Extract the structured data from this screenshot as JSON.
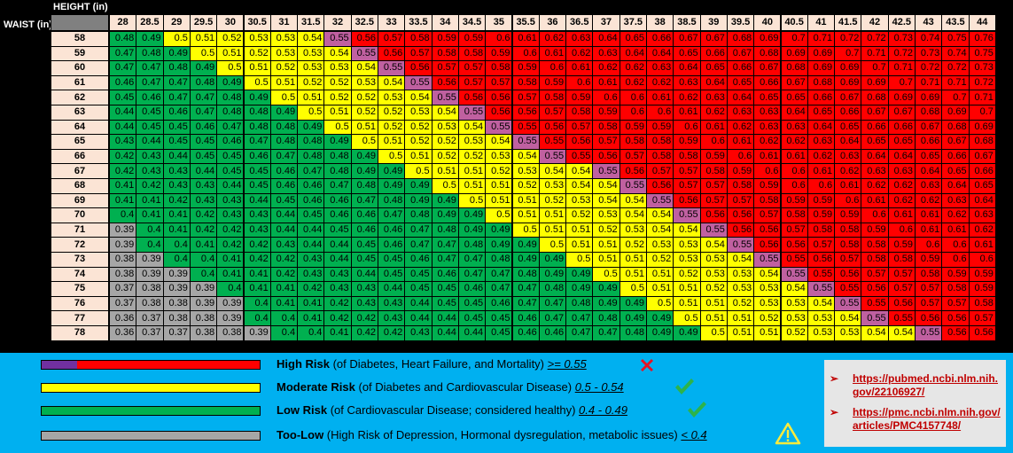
{
  "labels": {
    "height": "HEIGHT (in)",
    "waist": "WAIST (in)"
  },
  "heights": [
    "28",
    "28.5",
    "29",
    "29.5",
    "30",
    "30.5",
    "31",
    "31.5",
    "32",
    "32.5",
    "33",
    "33.5",
    "34",
    "34.5",
    "35",
    "35.5",
    "36",
    "36.5",
    "37",
    "37.5",
    "38",
    "38.5",
    "39",
    "39.5",
    "40",
    "40.5",
    "41",
    "41.5",
    "42",
    "42.5",
    "43",
    "43.5",
    "44"
  ],
  "rows": [
    {
      "waist": "58",
      "values": [
        "0.48",
        "0.49",
        "0.5",
        "0.51",
        "0.52",
        "0.53",
        "0.53",
        "0.54",
        "0.55",
        "0.56",
        "0.57",
        "0.58",
        "0.59",
        "0.59",
        "0.6",
        "0.61",
        "0.62",
        "0.63",
        "0.64",
        "0.65",
        "0.66",
        "0.67",
        "0.67",
        "0.68",
        "0.69",
        "0.7",
        "0.71",
        "0.72",
        "0.72",
        "0.73",
        "0.74",
        "0.75",
        "0.76"
      ]
    },
    {
      "waist": "59",
      "values": [
        "0.47",
        "0.48",
        "0.49",
        "0.5",
        "0.51",
        "0.52",
        "0.53",
        "0.53",
        "0.54",
        "0.55",
        "0.56",
        "0.57",
        "0.58",
        "0.58",
        "0.59",
        "0.6",
        "0.61",
        "0.62",
        "0.63",
        "0.64",
        "0.64",
        "0.65",
        "0.66",
        "0.67",
        "0.68",
        "0.69",
        "0.69",
        "0.7",
        "0.71",
        "0.72",
        "0.73",
        "0.74",
        "0.75"
      ]
    },
    {
      "waist": "60",
      "values": [
        "0.47",
        "0.47",
        "0.48",
        "0.49",
        "0.5",
        "0.51",
        "0.52",
        "0.53",
        "0.53",
        "0.54",
        "0.55",
        "0.56",
        "0.57",
        "0.57",
        "0.58",
        "0.59",
        "0.6",
        "0.61",
        "0.62",
        "0.62",
        "0.63",
        "0.64",
        "0.65",
        "0.66",
        "0.67",
        "0.68",
        "0.69",
        "0.69",
        "0.7",
        "0.71",
        "0.72",
        "0.72",
        "0.73"
      ]
    },
    {
      "waist": "61",
      "values": [
        "0.46",
        "0.47",
        "0.47",
        "0.48",
        "0.49",
        "0.5",
        "0.51",
        "0.52",
        "0.52",
        "0.53",
        "0.54",
        "0.55",
        "0.56",
        "0.57",
        "0.57",
        "0.58",
        "0.59",
        "0.6",
        "0.61",
        "0.62",
        "0.62",
        "0.63",
        "0.64",
        "0.65",
        "0.66",
        "0.67",
        "0.68",
        "0.69",
        "0.69",
        "0.7",
        "0.71",
        "0.71",
        "0.72"
      ]
    },
    {
      "waist": "62",
      "values": [
        "0.45",
        "0.46",
        "0.47",
        "0.47",
        "0.48",
        "0.49",
        "0.5",
        "0.51",
        "0.52",
        "0.52",
        "0.53",
        "0.54",
        "0.55",
        "0.56",
        "0.56",
        "0.57",
        "0.58",
        "0.59",
        "0.6",
        "0.6",
        "0.61",
        "0.62",
        "0.63",
        "0.64",
        "0.65",
        "0.65",
        "0.66",
        "0.67",
        "0.68",
        "0.69",
        "0.69",
        "0.7",
        "0.71"
      ]
    },
    {
      "waist": "63",
      "values": [
        "0.44",
        "0.45",
        "0.46",
        "0.47",
        "0.48",
        "0.48",
        "0.49",
        "0.5",
        "0.51",
        "0.52",
        "0.52",
        "0.53",
        "0.54",
        "0.55",
        "0.56",
        "0.56",
        "0.57",
        "0.58",
        "0.59",
        "0.6",
        "0.6",
        "0.61",
        "0.62",
        "0.63",
        "0.63",
        "0.64",
        "0.65",
        "0.66",
        "0.67",
        "0.67",
        "0.68",
        "0.69",
        "0.7"
      ]
    },
    {
      "waist": "64",
      "values": [
        "0.44",
        "0.45",
        "0.45",
        "0.46",
        "0.47",
        "0.48",
        "0.48",
        "0.49",
        "0.5",
        "0.51",
        "0.52",
        "0.52",
        "0.53",
        "0.54",
        "0.55",
        "0.55",
        "0.56",
        "0.57",
        "0.58",
        "0.59",
        "0.59",
        "0.6",
        "0.61",
        "0.62",
        "0.63",
        "0.63",
        "0.64",
        "0.65",
        "0.66",
        "0.66",
        "0.67",
        "0.68",
        "0.69"
      ]
    },
    {
      "waist": "65",
      "values": [
        "0.43",
        "0.44",
        "0.45",
        "0.45",
        "0.46",
        "0.47",
        "0.48",
        "0.48",
        "0.49",
        "0.5",
        "0.51",
        "0.52",
        "0.52",
        "0.53",
        "0.54",
        "0.55",
        "0.55",
        "0.56",
        "0.57",
        "0.58",
        "0.58",
        "0.59",
        "0.6",
        "0.61",
        "0.62",
        "0.62",
        "0.63",
        "0.64",
        "0.65",
        "0.65",
        "0.66",
        "0.67",
        "0.68"
      ]
    },
    {
      "waist": "66",
      "values": [
        "0.42",
        "0.43",
        "0.44",
        "0.45",
        "0.45",
        "0.46",
        "0.47",
        "0.48",
        "0.48",
        "0.49",
        "0.5",
        "0.51",
        "0.52",
        "0.52",
        "0.53",
        "0.54",
        "0.55",
        "0.55",
        "0.56",
        "0.57",
        "0.58",
        "0.58",
        "0.59",
        "0.6",
        "0.61",
        "0.61",
        "0.62",
        "0.63",
        "0.64",
        "0.64",
        "0.65",
        "0.66",
        "0.67"
      ]
    },
    {
      "waist": "67",
      "values": [
        "0.42",
        "0.43",
        "0.43",
        "0.44",
        "0.45",
        "0.45",
        "0.46",
        "0.47",
        "0.48",
        "0.49",
        "0.49",
        "0.5",
        "0.51",
        "0.51",
        "0.52",
        "0.53",
        "0.54",
        "0.54",
        "0.55",
        "0.56",
        "0.57",
        "0.57",
        "0.58",
        "0.59",
        "0.6",
        "0.6",
        "0.61",
        "0.62",
        "0.63",
        "0.63",
        "0.64",
        "0.65",
        "0.66"
      ]
    },
    {
      "waist": "68",
      "values": [
        "0.41",
        "0.42",
        "0.43",
        "0.43",
        "0.44",
        "0.45",
        "0.46",
        "0.46",
        "0.47",
        "0.48",
        "0.49",
        "0.49",
        "0.5",
        "0.51",
        "0.51",
        "0.52",
        "0.53",
        "0.54",
        "0.54",
        "0.55",
        "0.56",
        "0.57",
        "0.57",
        "0.58",
        "0.59",
        "0.6",
        "0.6",
        "0.61",
        "0.62",
        "0.62",
        "0.63",
        "0.64",
        "0.65"
      ]
    },
    {
      "waist": "69",
      "values": [
        "0.41",
        "0.41",
        "0.42",
        "0.43",
        "0.43",
        "0.44",
        "0.45",
        "0.46",
        "0.46",
        "0.47",
        "0.48",
        "0.49",
        "0.49",
        "0.5",
        "0.51",
        "0.51",
        "0.52",
        "0.53",
        "0.54",
        "0.54",
        "0.55",
        "0.56",
        "0.57",
        "0.57",
        "0.58",
        "0.59",
        "0.59",
        "0.6",
        "0.61",
        "0.62",
        "0.62",
        "0.63",
        "0.64"
      ]
    },
    {
      "waist": "70",
      "values": [
        "0.4",
        "0.41",
        "0.41",
        "0.42",
        "0.43",
        "0.43",
        "0.44",
        "0.45",
        "0.46",
        "0.46",
        "0.47",
        "0.48",
        "0.49",
        "0.49",
        "0.5",
        "0.51",
        "0.51",
        "0.52",
        "0.53",
        "0.54",
        "0.54",
        "0.55",
        "0.56",
        "0.56",
        "0.57",
        "0.58",
        "0.59",
        "0.59",
        "0.6",
        "0.61",
        "0.61",
        "0.62",
        "0.63"
      ]
    },
    {
      "waist": "71",
      "values": [
        "0.39",
        "0.4",
        "0.41",
        "0.42",
        "0.42",
        "0.43",
        "0.44",
        "0.44",
        "0.45",
        "0.46",
        "0.46",
        "0.47",
        "0.48",
        "0.49",
        "0.49",
        "0.5",
        "0.51",
        "0.51",
        "0.52",
        "0.53",
        "0.54",
        "0.54",
        "0.55",
        "0.56",
        "0.56",
        "0.57",
        "0.58",
        "0.58",
        "0.59",
        "0.6",
        "0.61",
        "0.61",
        "0.62"
      ]
    },
    {
      "waist": "72",
      "values": [
        "0.39",
        "0.4",
        "0.4",
        "0.41",
        "0.42",
        "0.42",
        "0.43",
        "0.44",
        "0.44",
        "0.45",
        "0.46",
        "0.47",
        "0.47",
        "0.48",
        "0.49",
        "0.49",
        "0.5",
        "0.51",
        "0.51",
        "0.52",
        "0.53",
        "0.53",
        "0.54",
        "0.55",
        "0.56",
        "0.56",
        "0.57",
        "0.58",
        "0.58",
        "0.59",
        "0.6",
        "0.6",
        "0.61"
      ]
    },
    {
      "waist": "73",
      "values": [
        "0.38",
        "0.39",
        "0.4",
        "0.4",
        "0.41",
        "0.42",
        "0.42",
        "0.43",
        "0.44",
        "0.45",
        "0.45",
        "0.46",
        "0.47",
        "0.47",
        "0.48",
        "0.49",
        "0.49",
        "0.5",
        "0.51",
        "0.51",
        "0.52",
        "0.53",
        "0.53",
        "0.54",
        "0.55",
        "0.55",
        "0.56",
        "0.57",
        "0.58",
        "0.58",
        "0.59",
        "0.6",
        "0.6"
      ]
    },
    {
      "waist": "74",
      "values": [
        "0.38",
        "0.39",
        "0.39",
        "0.4",
        "0.41",
        "0.41",
        "0.42",
        "0.43",
        "0.43",
        "0.44",
        "0.45",
        "0.45",
        "0.46",
        "0.47",
        "0.47",
        "0.48",
        "0.49",
        "0.49",
        "0.5",
        "0.51",
        "0.51",
        "0.52",
        "0.53",
        "0.53",
        "0.54",
        "0.55",
        "0.55",
        "0.56",
        "0.57",
        "0.57",
        "0.58",
        "0.59",
        "0.59"
      ]
    },
    {
      "waist": "75",
      "values": [
        "0.37",
        "0.38",
        "0.39",
        "0.39",
        "0.4",
        "0.41",
        "0.41",
        "0.42",
        "0.43",
        "0.43",
        "0.44",
        "0.45",
        "0.45",
        "0.46",
        "0.47",
        "0.47",
        "0.48",
        "0.49",
        "0.49",
        "0.5",
        "0.51",
        "0.51",
        "0.52",
        "0.53",
        "0.53",
        "0.54",
        "0.55",
        "0.55",
        "0.56",
        "0.57",
        "0.57",
        "0.58",
        "0.59"
      ]
    },
    {
      "waist": "76",
      "values": [
        "0.37",
        "0.38",
        "0.38",
        "0.39",
        "0.39",
        "0.4",
        "0.41",
        "0.41",
        "0.42",
        "0.43",
        "0.43",
        "0.44",
        "0.45",
        "0.45",
        "0.46",
        "0.47",
        "0.47",
        "0.48",
        "0.49",
        "0.49",
        "0.5",
        "0.51",
        "0.51",
        "0.52",
        "0.53",
        "0.53",
        "0.54",
        "0.55",
        "0.55",
        "0.56",
        "0.57",
        "0.57",
        "0.58"
      ]
    },
    {
      "waist": "77",
      "values": [
        "0.36",
        "0.37",
        "0.38",
        "0.38",
        "0.39",
        "0.4",
        "0.4",
        "0.41",
        "0.42",
        "0.42",
        "0.43",
        "0.44",
        "0.44",
        "0.45",
        "0.45",
        "0.46",
        "0.47",
        "0.47",
        "0.48",
        "0.49",
        "0.49",
        "0.5",
        "0.51",
        "0.51",
        "0.52",
        "0.53",
        "0.53",
        "0.54",
        "0.55",
        "0.55",
        "0.56",
        "0.56",
        "0.57"
      ]
    },
    {
      "waist": "78",
      "values": [
        "0.36",
        "0.37",
        "0.37",
        "0.38",
        "0.38",
        "0.39",
        "0.4",
        "0.4",
        "0.41",
        "0.42",
        "0.42",
        "0.43",
        "0.44",
        "0.44",
        "0.45",
        "0.46",
        "0.46",
        "0.47",
        "0.47",
        "0.48",
        "0.49",
        "0.49",
        "0.5",
        "0.51",
        "0.51",
        "0.52",
        "0.53",
        "0.53",
        "0.54",
        "0.54",
        "0.55",
        "0.56",
        "0.56"
      ]
    }
  ],
  "colors": {
    "gray": "#a6a6a6",
    "green": "#00b050",
    "yellow": "#ffff00",
    "purple": "#c060a0",
    "red": "#ff0000",
    "header": "#fbe4d5",
    "legend_bg": "#00b0f0"
  },
  "legend": {
    "high": {
      "bold": "High Risk",
      "rest": " (of Diabetes, Heart Failure, and Mortality) ",
      "range": ">= 0.55",
      "icon": "x-mark-icon"
    },
    "moderate": {
      "bold": "Moderate Risk",
      "rest": " (of Diabetes and Cardiovascular Disease) ",
      "range": "0.5 - 0.54",
      "icon": "check-mark-icon"
    },
    "low": {
      "bold": "Low Risk",
      "rest": " (of Cardiovascular Disease; considered healthy) ",
      "range": "0.4 - 0.49",
      "icon": "check-mark-icon"
    },
    "toolow": {
      "bold": "Too-Low",
      "rest": " (High Risk of Depression, Hormonal dysregulation, metabolic issues) ",
      "range": "< 0.4",
      "icon": "warning-icon"
    }
  },
  "references": [
    {
      "text": "https://pubmed.ncbi.nlm.nih.gov/22106927/"
    },
    {
      "text": "https://pmc.ncbi.nlm.nih.gov/articles/PMC4157748/"
    }
  ]
}
